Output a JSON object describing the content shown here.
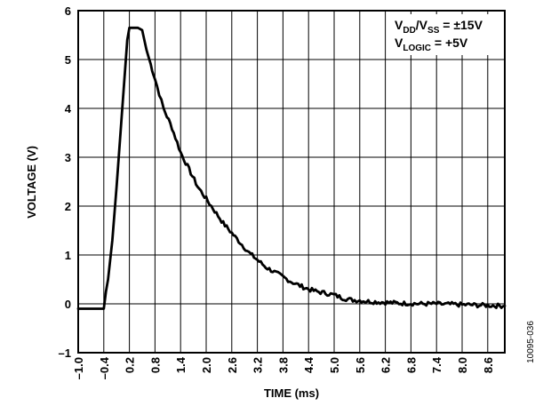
{
  "chart_data": {
    "type": "line",
    "title": "",
    "xlabel": "TIME (ms)",
    "ylabel": "VOLTAGE (V)",
    "xlim": [
      -1.0,
      9.0
    ],
    "ylim": [
      -1,
      6
    ],
    "grid": true,
    "x_tick_labels": [
      "–1.0",
      "–0.4",
      "0.2",
      "0.8",
      "1.4",
      "2.0",
      "2.6",
      "3.2",
      "3.8",
      "4.4",
      "5.0",
      "5.6",
      "6.2",
      "6.8",
      "7.4",
      "8.0",
      "8.6"
    ],
    "x_tick_values": [
      -1.0,
      -0.4,
      0.2,
      0.8,
      1.4,
      2.0,
      2.6,
      3.2,
      3.8,
      4.4,
      5.0,
      5.6,
      6.2,
      6.8,
      7.4,
      8.0,
      8.6
    ],
    "y_tick_labels": [
      "–1",
      "0",
      "1",
      "2",
      "3",
      "4",
      "5",
      "6"
    ],
    "y_tick_values": [
      -1,
      0,
      1,
      2,
      3,
      4,
      5,
      6
    ],
    "series": [
      {
        "x": [
          -1.0,
          -0.8,
          -0.6,
          -0.5,
          -0.45,
          -0.4,
          -0.35,
          -0.3,
          -0.2,
          -0.1,
          0.0,
          0.1,
          0.15,
          0.2,
          0.3,
          0.4,
          0.5,
          0.6,
          0.7,
          0.8,
          0.9,
          1.0,
          1.2,
          1.4,
          1.6,
          1.8,
          2.0,
          2.2,
          2.4,
          2.6,
          2.8,
          3.0,
          3.2,
          3.4,
          3.6,
          3.8,
          4.0,
          4.2,
          4.4,
          4.6,
          4.8,
          5.0,
          5.2,
          5.4,
          5.6,
          5.8,
          6.0,
          6.2,
          6.4,
          6.6,
          6.8,
          7.0,
          7.2,
          7.4,
          7.6,
          7.8,
          8.0,
          8.2,
          8.4,
          8.6,
          8.8,
          9.0
        ],
        "y": [
          -0.1,
          -0.1,
          -0.1,
          -0.1,
          -0.1,
          -0.1,
          0.25,
          0.5,
          1.3,
          2.4,
          3.6,
          4.8,
          5.4,
          5.65,
          5.65,
          5.65,
          5.6,
          5.2,
          4.9,
          4.6,
          4.3,
          4.0,
          3.6,
          3.1,
          2.75,
          2.4,
          2.15,
          1.9,
          1.65,
          1.45,
          1.25,
          1.05,
          0.9,
          0.75,
          0.65,
          0.55,
          0.45,
          0.37,
          0.3,
          0.25,
          0.22,
          0.18,
          0.12,
          0.08,
          0.07,
          0.05,
          0.04,
          0.03,
          0.02,
          0.01,
          0.01,
          0.0,
          0.0,
          0.0,
          -0.01,
          -0.01,
          -0.02,
          -0.02,
          -0.03,
          -0.03,
          -0.04,
          -0.04
        ]
      }
    ],
    "annotations": {
      "line1_main": "V",
      "line1_sub1": "DD",
      "line1_mid": "/V",
      "line1_sub2": "SS",
      "line1_tail": " = ±15V",
      "line2_main": "V",
      "line2_sub": "LOGIC",
      "line2_tail": " = +5V"
    },
    "figure_id": "10095-036"
  }
}
